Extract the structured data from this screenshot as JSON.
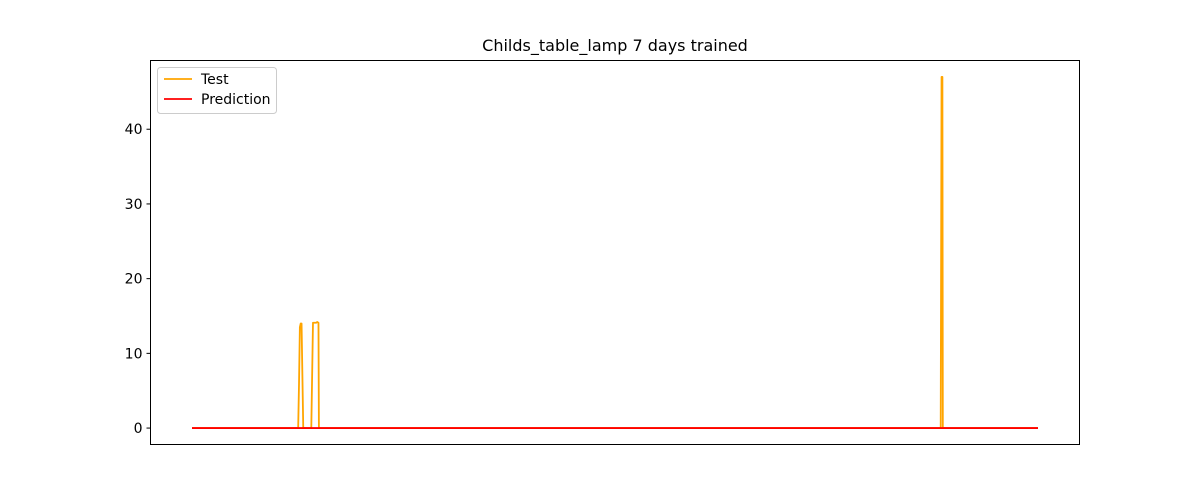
{
  "chart_data": {
    "type": "line",
    "title": "Childs_table_lamp 7 days trained",
    "xlabel": "",
    "ylabel": "",
    "x_ticks_visible": false,
    "xlim": [
      0,
      100
    ],
    "ylim": [
      -2.2,
      49.2
    ],
    "y_ticks": [
      0,
      10,
      20,
      30,
      40
    ],
    "grid": false,
    "legend": {
      "position": "top-left"
    },
    "series": [
      {
        "name": "Test",
        "color": "#ffa500",
        "points": [
          [
            0,
            0
          ],
          [
            12.55,
            0
          ],
          [
            12.65,
            6
          ],
          [
            12.75,
            13.5
          ],
          [
            12.85,
            14
          ],
          [
            12.95,
            14
          ],
          [
            13.05,
            7
          ],
          [
            13.15,
            0
          ],
          [
            14.1,
            0
          ],
          [
            14.2,
            7
          ],
          [
            14.3,
            14.1
          ],
          [
            14.5,
            14.1
          ],
          [
            14.7,
            14.1
          ],
          [
            14.8,
            14.2
          ],
          [
            14.95,
            14.1
          ],
          [
            15.0,
            0
          ],
          [
            88.5,
            0
          ],
          [
            88.6,
            47
          ],
          [
            88.7,
            47
          ],
          [
            88.75,
            0
          ],
          [
            100,
            0
          ]
        ]
      },
      {
        "name": "Prediction",
        "color": "#ff0000",
        "points": [
          [
            0,
            0
          ],
          [
            100,
            0
          ]
        ]
      }
    ]
  }
}
